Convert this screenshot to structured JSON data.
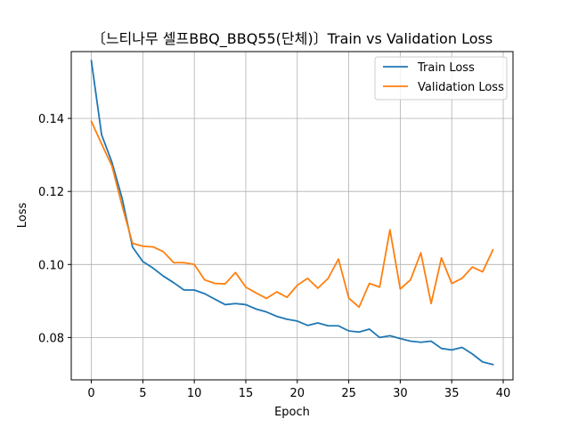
{
  "chart_data": {
    "type": "line",
    "title": "〔느티나무 셀프BBQ_BBQ55(단체)〕Train vs Validation Loss",
    "xlabel": "Epoch",
    "ylabel": "Loss",
    "xlim": [
      -1.95,
      40.95
    ],
    "ylim": [
      0.0684,
      0.1583
    ],
    "xticks": [
      0,
      5,
      10,
      15,
      20,
      25,
      30,
      35,
      40
    ],
    "yticks": [
      0.08,
      0.1,
      0.12,
      0.14
    ],
    "ytick_labels": [
      "0.08",
      "0.10",
      "0.12",
      "0.14"
    ],
    "grid": true,
    "legend_position": "top-right",
    "x": [
      0,
      1,
      2,
      3,
      4,
      5,
      6,
      7,
      8,
      9,
      10,
      11,
      12,
      13,
      14,
      15,
      16,
      17,
      18,
      19,
      20,
      21,
      22,
      23,
      24,
      25,
      26,
      27,
      28,
      29,
      30,
      31,
      32,
      33,
      34,
      35,
      36,
      37,
      38,
      39
    ],
    "series": [
      {
        "name": "Train Loss",
        "color": "#1f77b4",
        "values": [
          0.1558,
          0.1355,
          0.128,
          0.118,
          0.1048,
          0.1008,
          0.099,
          0.0968,
          0.095,
          0.093,
          0.093,
          0.092,
          0.0905,
          0.089,
          0.0893,
          0.089,
          0.0878,
          0.087,
          0.0858,
          0.085,
          0.0845,
          0.0833,
          0.084,
          0.0832,
          0.0832,
          0.0818,
          0.0815,
          0.0823,
          0.08,
          0.0805,
          0.0797,
          0.079,
          0.0787,
          0.079,
          0.077,
          0.0766,
          0.0773,
          0.0755,
          0.0733,
          0.0726
        ]
      },
      {
        "name": "Validation Loss",
        "color": "#ff7f0e",
        "values": [
          0.1392,
          0.133,
          0.127,
          0.116,
          0.1058,
          0.105,
          0.1048,
          0.1035,
          0.1005,
          0.1005,
          0.1,
          0.0958,
          0.0948,
          0.0947,
          0.0978,
          0.0938,
          0.0922,
          0.0907,
          0.0925,
          0.091,
          0.0943,
          0.0962,
          0.0935,
          0.0962,
          0.1015,
          0.0908,
          0.0883,
          0.0948,
          0.0938,
          0.1095,
          0.0933,
          0.0958,
          0.1032,
          0.0893,
          0.1018,
          0.0948,
          0.0962,
          0.0993,
          0.098,
          0.104
        ]
      }
    ]
  }
}
